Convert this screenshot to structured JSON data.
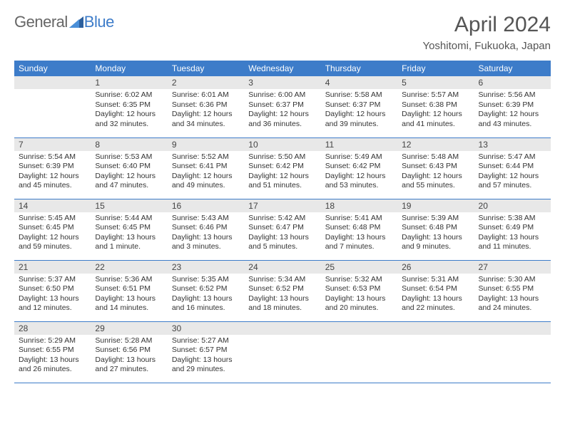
{
  "logo": {
    "text1": "General",
    "text2": "Blue"
  },
  "title": "April 2024",
  "location": "Yoshitomi, Fukuoka, Japan",
  "colors": {
    "header_bg": "#3d7cc9",
    "header_text": "#ffffff",
    "daynum_bg": "#e8e8e8",
    "border": "#3d7cc9",
    "text": "#333333",
    "title_text": "#555555"
  },
  "weekdays": [
    "Sunday",
    "Monday",
    "Tuesday",
    "Wednesday",
    "Thursday",
    "Friday",
    "Saturday"
  ],
  "weeks": [
    [
      {
        "day": "",
        "lines": []
      },
      {
        "day": "1",
        "lines": [
          "Sunrise: 6:02 AM",
          "Sunset: 6:35 PM",
          "Daylight: 12 hours",
          "and 32 minutes."
        ]
      },
      {
        "day": "2",
        "lines": [
          "Sunrise: 6:01 AM",
          "Sunset: 6:36 PM",
          "Daylight: 12 hours",
          "and 34 minutes."
        ]
      },
      {
        "day": "3",
        "lines": [
          "Sunrise: 6:00 AM",
          "Sunset: 6:37 PM",
          "Daylight: 12 hours",
          "and 36 minutes."
        ]
      },
      {
        "day": "4",
        "lines": [
          "Sunrise: 5:58 AM",
          "Sunset: 6:37 PM",
          "Daylight: 12 hours",
          "and 39 minutes."
        ]
      },
      {
        "day": "5",
        "lines": [
          "Sunrise: 5:57 AM",
          "Sunset: 6:38 PM",
          "Daylight: 12 hours",
          "and 41 minutes."
        ]
      },
      {
        "day": "6",
        "lines": [
          "Sunrise: 5:56 AM",
          "Sunset: 6:39 PM",
          "Daylight: 12 hours",
          "and 43 minutes."
        ]
      }
    ],
    [
      {
        "day": "7",
        "lines": [
          "Sunrise: 5:54 AM",
          "Sunset: 6:39 PM",
          "Daylight: 12 hours",
          "and 45 minutes."
        ]
      },
      {
        "day": "8",
        "lines": [
          "Sunrise: 5:53 AM",
          "Sunset: 6:40 PM",
          "Daylight: 12 hours",
          "and 47 minutes."
        ]
      },
      {
        "day": "9",
        "lines": [
          "Sunrise: 5:52 AM",
          "Sunset: 6:41 PM",
          "Daylight: 12 hours",
          "and 49 minutes."
        ]
      },
      {
        "day": "10",
        "lines": [
          "Sunrise: 5:50 AM",
          "Sunset: 6:42 PM",
          "Daylight: 12 hours",
          "and 51 minutes."
        ]
      },
      {
        "day": "11",
        "lines": [
          "Sunrise: 5:49 AM",
          "Sunset: 6:42 PM",
          "Daylight: 12 hours",
          "and 53 minutes."
        ]
      },
      {
        "day": "12",
        "lines": [
          "Sunrise: 5:48 AM",
          "Sunset: 6:43 PM",
          "Daylight: 12 hours",
          "and 55 minutes."
        ]
      },
      {
        "day": "13",
        "lines": [
          "Sunrise: 5:47 AM",
          "Sunset: 6:44 PM",
          "Daylight: 12 hours",
          "and 57 minutes."
        ]
      }
    ],
    [
      {
        "day": "14",
        "lines": [
          "Sunrise: 5:45 AM",
          "Sunset: 6:45 PM",
          "Daylight: 12 hours",
          "and 59 minutes."
        ]
      },
      {
        "day": "15",
        "lines": [
          "Sunrise: 5:44 AM",
          "Sunset: 6:45 PM",
          "Daylight: 13 hours",
          "and 1 minute."
        ]
      },
      {
        "day": "16",
        "lines": [
          "Sunrise: 5:43 AM",
          "Sunset: 6:46 PM",
          "Daylight: 13 hours",
          "and 3 minutes."
        ]
      },
      {
        "day": "17",
        "lines": [
          "Sunrise: 5:42 AM",
          "Sunset: 6:47 PM",
          "Daylight: 13 hours",
          "and 5 minutes."
        ]
      },
      {
        "day": "18",
        "lines": [
          "Sunrise: 5:41 AM",
          "Sunset: 6:48 PM",
          "Daylight: 13 hours",
          "and 7 minutes."
        ]
      },
      {
        "day": "19",
        "lines": [
          "Sunrise: 5:39 AM",
          "Sunset: 6:48 PM",
          "Daylight: 13 hours",
          "and 9 minutes."
        ]
      },
      {
        "day": "20",
        "lines": [
          "Sunrise: 5:38 AM",
          "Sunset: 6:49 PM",
          "Daylight: 13 hours",
          "and 11 minutes."
        ]
      }
    ],
    [
      {
        "day": "21",
        "lines": [
          "Sunrise: 5:37 AM",
          "Sunset: 6:50 PM",
          "Daylight: 13 hours",
          "and 12 minutes."
        ]
      },
      {
        "day": "22",
        "lines": [
          "Sunrise: 5:36 AM",
          "Sunset: 6:51 PM",
          "Daylight: 13 hours",
          "and 14 minutes."
        ]
      },
      {
        "day": "23",
        "lines": [
          "Sunrise: 5:35 AM",
          "Sunset: 6:52 PM",
          "Daylight: 13 hours",
          "and 16 minutes."
        ]
      },
      {
        "day": "24",
        "lines": [
          "Sunrise: 5:34 AM",
          "Sunset: 6:52 PM",
          "Daylight: 13 hours",
          "and 18 minutes."
        ]
      },
      {
        "day": "25",
        "lines": [
          "Sunrise: 5:32 AM",
          "Sunset: 6:53 PM",
          "Daylight: 13 hours",
          "and 20 minutes."
        ]
      },
      {
        "day": "26",
        "lines": [
          "Sunrise: 5:31 AM",
          "Sunset: 6:54 PM",
          "Daylight: 13 hours",
          "and 22 minutes."
        ]
      },
      {
        "day": "27",
        "lines": [
          "Sunrise: 5:30 AM",
          "Sunset: 6:55 PM",
          "Daylight: 13 hours",
          "and 24 minutes."
        ]
      }
    ],
    [
      {
        "day": "28",
        "lines": [
          "Sunrise: 5:29 AM",
          "Sunset: 6:55 PM",
          "Daylight: 13 hours",
          "and 26 minutes."
        ]
      },
      {
        "day": "29",
        "lines": [
          "Sunrise: 5:28 AM",
          "Sunset: 6:56 PM",
          "Daylight: 13 hours",
          "and 27 minutes."
        ]
      },
      {
        "day": "30",
        "lines": [
          "Sunrise: 5:27 AM",
          "Sunset: 6:57 PM",
          "Daylight: 13 hours",
          "and 29 minutes."
        ]
      },
      {
        "day": "",
        "lines": []
      },
      {
        "day": "",
        "lines": []
      },
      {
        "day": "",
        "lines": []
      },
      {
        "day": "",
        "lines": []
      }
    ]
  ]
}
